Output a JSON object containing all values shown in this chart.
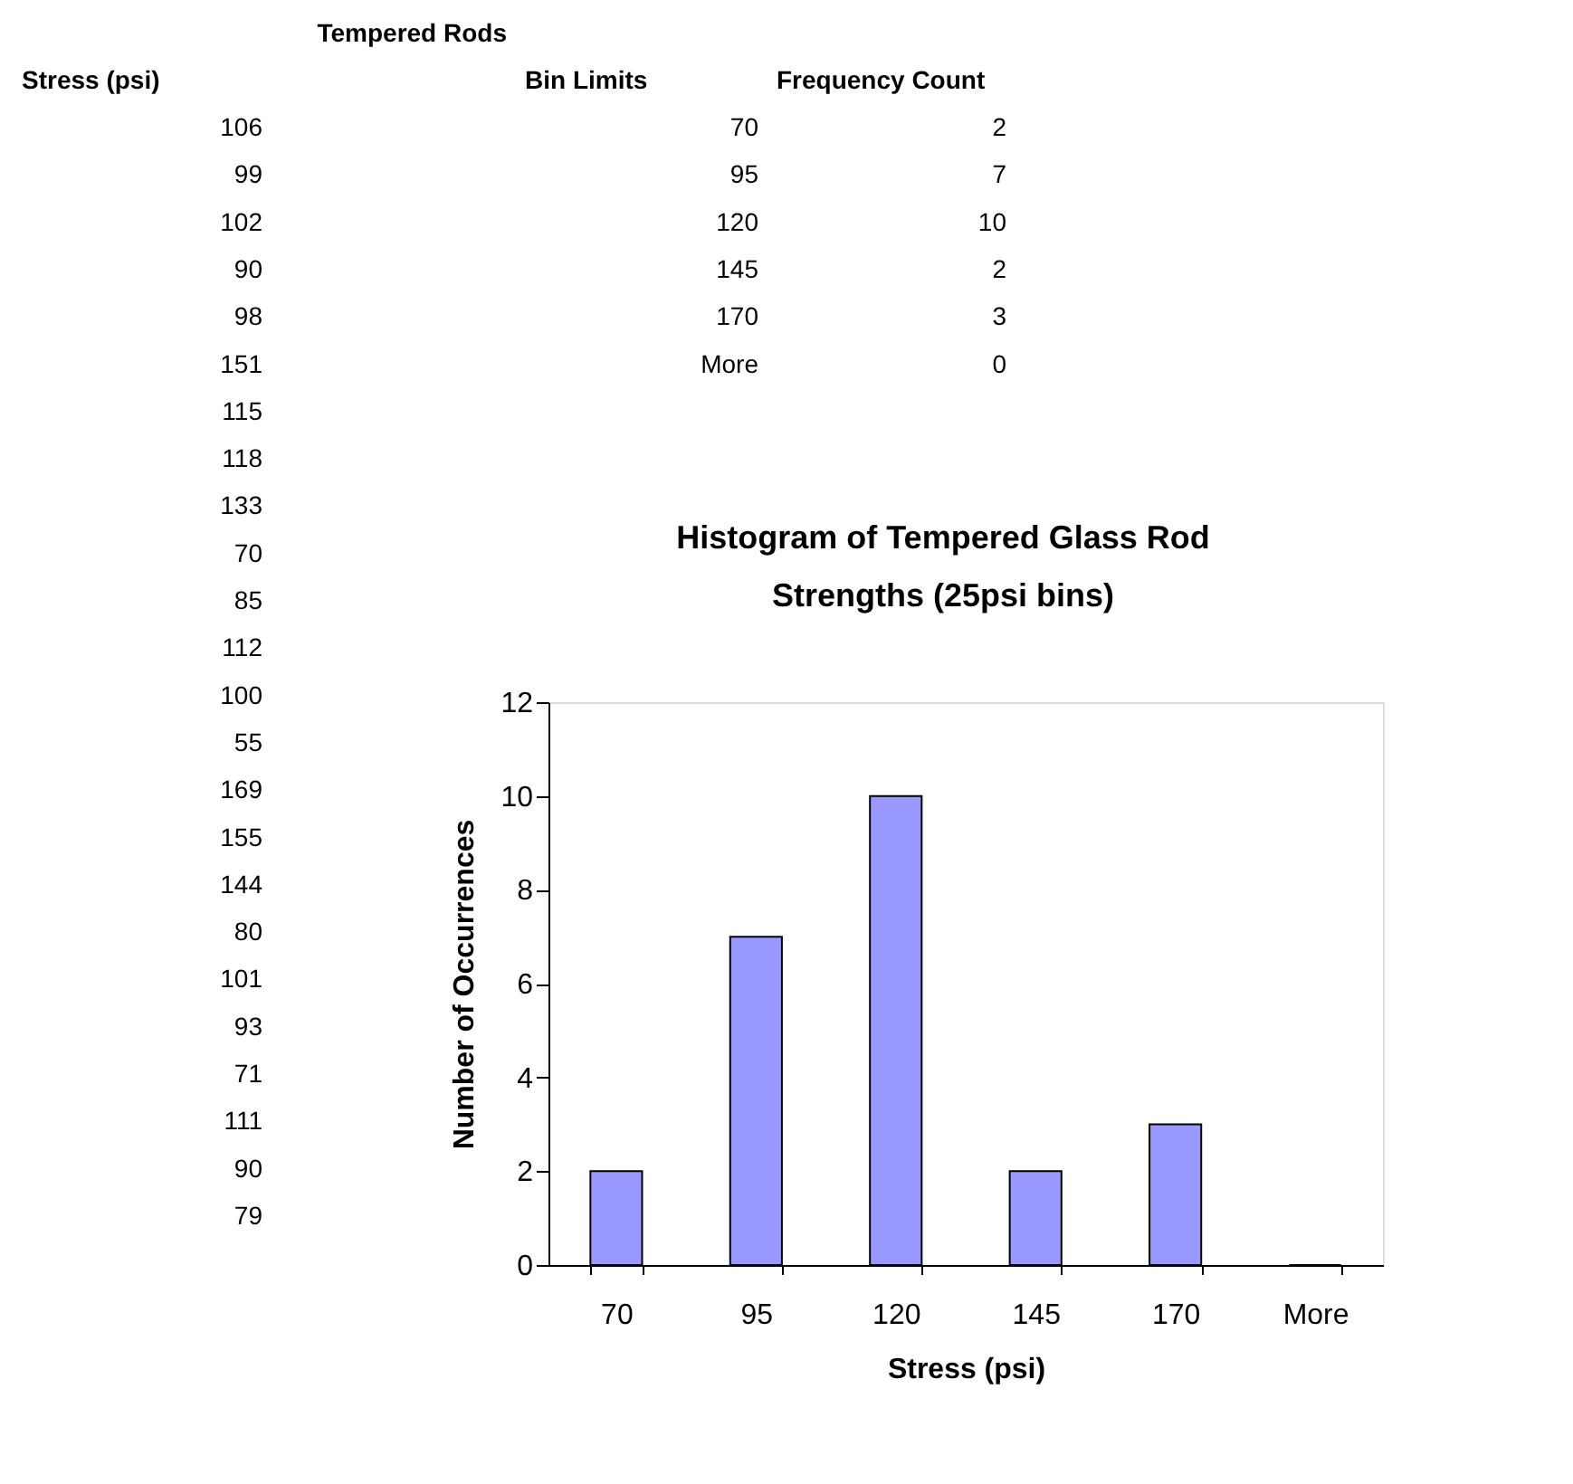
{
  "chart_data": {
    "type": "bar",
    "title": "Histogram of Tempered Glass Rod Strengths (25psi bins)",
    "xlabel": "Stress (psi)",
    "ylabel": "Number of Occurrences",
    "categories": [
      "70",
      "95",
      "120",
      "145",
      "170",
      "More"
    ],
    "values": [
      2,
      7,
      10,
      2,
      3,
      0
    ],
    "color": "#9999ff",
    "ylim": [
      0,
      12
    ],
    "yticks": [
      0,
      2,
      4,
      6,
      8,
      10,
      12
    ],
    "grid": false,
    "annotations": [
      "Tempered Rods",
      "Stress (psi)",
      "106",
      "99",
      "102",
      "90",
      "98",
      "151",
      "115",
      "118",
      "133",
      "70",
      "85",
      "112",
      "100",
      "55",
      "169",
      "155",
      "144",
      "80",
      "101",
      "93",
      "71",
      "111",
      "90",
      "79",
      "Bin Limits",
      "Frequency Count",
      "70",
      "95",
      "120",
      "145",
      "170",
      "More",
      "2",
      "7",
      "10",
      "2",
      "3",
      "0"
    ]
  }
}
